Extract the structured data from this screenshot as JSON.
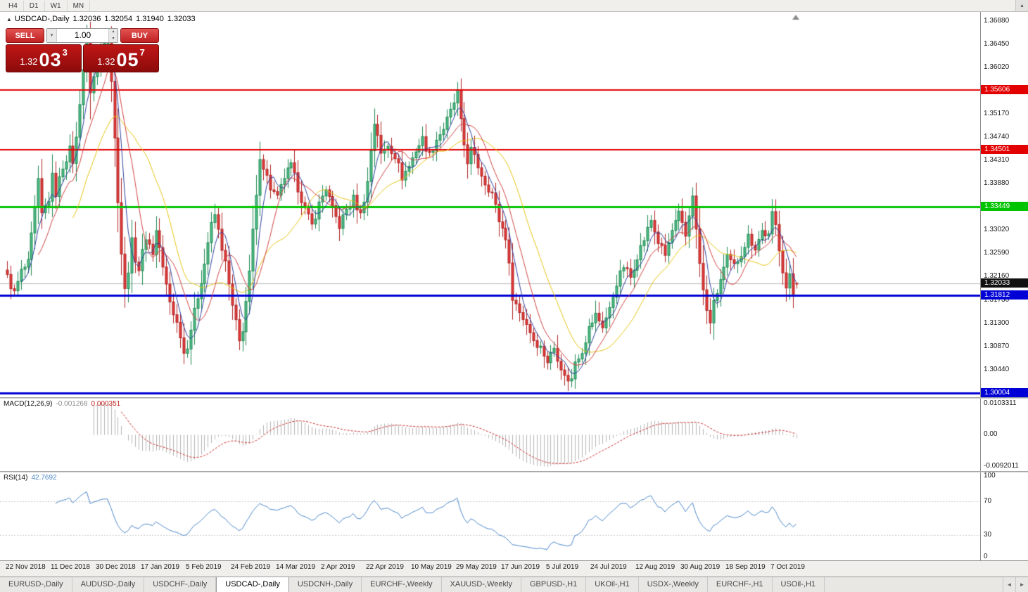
{
  "toolbar": {
    "timeframes": [
      "H4",
      "D1",
      "W1",
      "MN"
    ]
  },
  "icons": {
    "one_click_collapse": "▲",
    "toolbar_collapse": "▴",
    "volume_dropdown": "▾",
    "volume_up": "▴",
    "volume_down": "▾",
    "tabs_left": "◄",
    "tabs_right": "►"
  },
  "symbol_info": {
    "symbol": "USDCAD-,Daily",
    "open": "1.32036",
    "high": "1.32054",
    "low": "1.31940",
    "close": "1.32033"
  },
  "trade_panel": {
    "sell_label": "SELL",
    "buy_label": "BUY",
    "volume": "1.00",
    "sell_price": {
      "big": "1.32",
      "pips": "03",
      "sup": "3"
    },
    "buy_price": {
      "big": "1.32",
      "pips": "05",
      "sup": "7"
    }
  },
  "price_axis": {
    "labels": [
      {
        "text": "1.36880",
        "price": 1.3688
      },
      {
        "text": "1.36450",
        "price": 1.3645
      },
      {
        "text": "1.36020",
        "price": 1.3602
      },
      {
        "text": "1.35170",
        "price": 1.3517
      },
      {
        "text": "1.34740",
        "price": 1.3474
      },
      {
        "text": "1.34310",
        "price": 1.3431
      },
      {
        "text": "1.33880",
        "price": 1.3388
      },
      {
        "text": "1.33020",
        "price": 1.3302
      },
      {
        "text": "1.32590",
        "price": 1.3259
      },
      {
        "text": "1.32160",
        "price": 1.3216
      },
      {
        "text": "1.31730",
        "price": 1.3173
      },
      {
        "text": "1.31300",
        "price": 1.313
      },
      {
        "text": "1.30870",
        "price": 1.3087
      },
      {
        "text": "1.30440",
        "price": 1.3044
      }
    ],
    "badges": [
      {
        "text": "1.35606",
        "price": 1.35606,
        "color": "#e30000"
      },
      {
        "text": "1.34501",
        "price": 1.34501,
        "color": "#e30000"
      },
      {
        "text": "1.33449",
        "price": 1.33449,
        "color": "#00c400"
      },
      {
        "text": "1.32033",
        "price": 1.32033,
        "color": "#111111"
      },
      {
        "text": "1.31812",
        "price": 1.31812,
        "color": "#0000d6"
      },
      {
        "text": "1.30004",
        "price": 1.30004,
        "color": "#0000d6"
      }
    ]
  },
  "macd": {
    "name": "MACD(12,26,9)",
    "main_value": "-0.001268",
    "signal_value": "0.000351",
    "axis": [
      "0.0103311",
      "0.00",
      "-0.0092011"
    ]
  },
  "rsi": {
    "name": "RSI(14)",
    "value": "42.7692",
    "axis": [
      100,
      70,
      30,
      0
    ],
    "levels": [
      70,
      30
    ]
  },
  "date_axis": [
    "22 Nov 2018",
    "11 Dec 2018",
    "30 Dec 2018",
    "17 Jan 2019",
    "5 Feb 2019",
    "24 Feb 2019",
    "14 Mar 2019",
    "2 Apr 2019",
    "22 Apr 2019",
    "10 May 2019",
    "29 May 2019",
    "17 Jun 2019",
    "5 Jul 2019",
    "24 Jul 2019",
    "12 Aug 2019",
    "30 Aug 2019",
    "18 Sep 2019",
    "7 Oct 2019"
  ],
  "tabs": {
    "items": [
      "EURUSD-,Daily",
      "AUDUSD-,Daily",
      "USDCHF-,Daily",
      "USDCAD-,Daily",
      "USDCNH-,Daily",
      "EURCHF-,Weekly",
      "XAUUSD-,Weekly",
      "GBPUSD-,H1",
      "UKOil-,H1",
      "USDX-,Weekly",
      "EURCHF-,H1",
      "USOil-,H1"
    ],
    "active_index": 3
  },
  "chart_data": {
    "type": "candlestick",
    "symbol": "USDCAD",
    "timeframe": "Daily",
    "bars": 229,
    "ohlc_current": {
      "open": 1.32036,
      "high": 1.32054,
      "low": 1.3194,
      "close": 1.32033
    },
    "price_axis_step": 0.0043,
    "horizontal_lines": [
      {
        "price": 1.35606,
        "color": "#e30000",
        "width": 2
      },
      {
        "price": 1.34501,
        "color": "#e30000",
        "width": 2
      },
      {
        "price": 1.33449,
        "color": "#00c400",
        "width": 3
      },
      {
        "price": 1.31812,
        "color": "#0000d6",
        "width": 3
      },
      {
        "price": 1.30004,
        "color": "#0000d6",
        "width": 3
      }
    ],
    "current_price_line": {
      "price": 1.32033,
      "color": "#b9b9b9"
    },
    "moving_averages": [
      {
        "period": 20,
        "color": "#e4c414"
      },
      {
        "period": 10,
        "color": "#d04040"
      },
      {
        "period": 5,
        "color": "#2c3e9c"
      }
    ],
    "indicators": [
      {
        "name": "MACD",
        "params": [
          12,
          26,
          9
        ],
        "main": -0.001268,
        "signal": 0.000351
      },
      {
        "name": "RSI",
        "params": [
          14
        ],
        "value": 42.7692
      }
    ],
    "close_anchors": [
      [
        0,
        1.3215
      ],
      [
        2,
        1.3185
      ],
      [
        4,
        1.3225
      ],
      [
        6,
        1.324
      ],
      [
        8,
        1.334
      ],
      [
        9,
        1.339
      ],
      [
        10,
        1.333
      ],
      [
        12,
        1.336
      ],
      [
        13,
        1.34
      ],
      [
        14,
        1.337
      ],
      [
        16,
        1.342
      ],
      [
        18,
        1.345
      ],
      [
        19,
        1.343
      ],
      [
        20,
        1.347
      ],
      [
        21,
        1.354
      ],
      [
        22,
        1.36
      ],
      [
        23,
        1.3645
      ],
      [
        24,
        1.356
      ],
      [
        25,
        1.3585
      ],
      [
        26,
        1.3605
      ],
      [
        27,
        1.3635
      ],
      [
        28,
        1.3655
      ],
      [
        29,
        1.3655
      ],
      [
        30,
        1.358
      ],
      [
        31,
        1.347
      ],
      [
        32,
        1.336
      ],
      [
        33,
        1.326
      ],
      [
        34,
        1.319
      ],
      [
        35,
        1.323
      ],
      [
        36,
        1.328
      ],
      [
        37,
        1.325
      ],
      [
        38,
        1.323
      ],
      [
        40,
        1.329
      ],
      [
        42,
        1.326
      ],
      [
        43,
        1.33
      ],
      [
        44,
        1.327
      ],
      [
        45,
        1.323
      ],
      [
        46,
        1.32
      ],
      [
        47,
        1.317
      ],
      [
        48,
        1.315
      ],
      [
        50,
        1.311
      ],
      [
        51,
        1.3075
      ],
      [
        52,
        1.309
      ],
      [
        53,
        1.312
      ],
      [
        55,
        1.318
      ],
      [
        57,
        1.324
      ],
      [
        58,
        1.328
      ],
      [
        59,
        1.331
      ],
      [
        60,
        1.333
      ],
      [
        61,
        1.33
      ],
      [
        62,
        1.327
      ],
      [
        63,
        1.324
      ],
      [
        64,
        1.32
      ],
      [
        65,
        1.316
      ],
      [
        66,
        1.313
      ],
      [
        67,
        1.3095
      ],
      [
        68,
        1.312
      ],
      [
        70,
        1.322
      ],
      [
        71,
        1.33
      ],
      [
        72,
        1.336
      ],
      [
        73,
        1.344
      ],
      [
        74,
        1.342
      ],
      [
        76,
        1.338
      ],
      [
        78,
        1.336
      ],
      [
        80,
        1.34
      ],
      [
        82,
        1.342
      ],
      [
        84,
        1.338
      ],
      [
        86,
        1.334
      ],
      [
        88,
        1.331
      ],
      [
        90,
        1.335
      ],
      [
        92,
        1.338
      ],
      [
        94,
        1.334
      ],
      [
        96,
        1.331
      ],
      [
        98,
        1.334
      ],
      [
        100,
        1.336
      ],
      [
        102,
        1.333
      ],
      [
        104,
        1.339
      ],
      [
        105,
        1.345
      ],
      [
        106,
        1.35
      ],
      [
        107,
        1.348
      ],
      [
        108,
        1.344
      ],
      [
        110,
        1.346
      ],
      [
        112,
        1.344
      ],
      [
        114,
        1.34
      ],
      [
        116,
        1.342
      ],
      [
        118,
        1.345
      ],
      [
        120,
        1.347
      ],
      [
        122,
        1.344
      ],
      [
        124,
        1.347
      ],
      [
        126,
        1.349
      ],
      [
        128,
        1.352
      ],
      [
        130,
        1.3555
      ],
      [
        131,
        1.35
      ],
      [
        132,
        1.346
      ],
      [
        133,
        1.343
      ],
      [
        134,
        1.345
      ],
      [
        136,
        1.342
      ],
      [
        138,
        1.339
      ],
      [
        140,
        1.337
      ],
      [
        142,
        1.332
      ],
      [
        144,
        1.329
      ],
      [
        146,
        1.318
      ],
      [
        148,
        1.315
      ],
      [
        150,
        1.313
      ],
      [
        152,
        1.31
      ],
      [
        154,
        1.3085
      ],
      [
        156,
        1.306
      ],
      [
        158,
        1.3085
      ],
      [
        160,
        1.305
      ],
      [
        161,
        1.303
      ],
      [
        163,
        1.3025
      ],
      [
        164,
        1.306
      ],
      [
        166,
        1.308
      ],
      [
        168,
        1.312
      ],
      [
        170,
        1.3145
      ],
      [
        172,
        1.3125
      ],
      [
        174,
        1.3155
      ],
      [
        176,
        1.3205
      ],
      [
        178,
        1.3235
      ],
      [
        180,
        1.3215
      ],
      [
        182,
        1.3255
      ],
      [
        184,
        1.3285
      ],
      [
        186,
        1.332
      ],
      [
        188,
        1.328
      ],
      [
        190,
        1.3255
      ],
      [
        192,
        1.33
      ],
      [
        194,
        1.333
      ],
      [
        196,
        1.329
      ],
      [
        197,
        1.333
      ],
      [
        198,
        1.337
      ],
      [
        199,
        1.33
      ],
      [
        200,
        1.324
      ],
      [
        201,
        1.319
      ],
      [
        202,
        1.315
      ],
      [
        203,
        1.3135
      ],
      [
        204,
        1.3165
      ],
      [
        206,
        1.321
      ],
      [
        208,
        1.325
      ],
      [
        210,
        1.3235
      ],
      [
        212,
        1.326
      ],
      [
        214,
        1.329
      ],
      [
        216,
        1.327
      ],
      [
        218,
        1.33
      ],
      [
        220,
        1.329
      ],
      [
        221,
        1.333
      ],
      [
        222,
        1.331
      ],
      [
        223,
        1.327
      ],
      [
        224,
        1.323
      ],
      [
        225,
        1.3195
      ],
      [
        226,
        1.3215
      ],
      [
        227,
        1.3185
      ],
      [
        228,
        1.32033
      ]
    ]
  }
}
